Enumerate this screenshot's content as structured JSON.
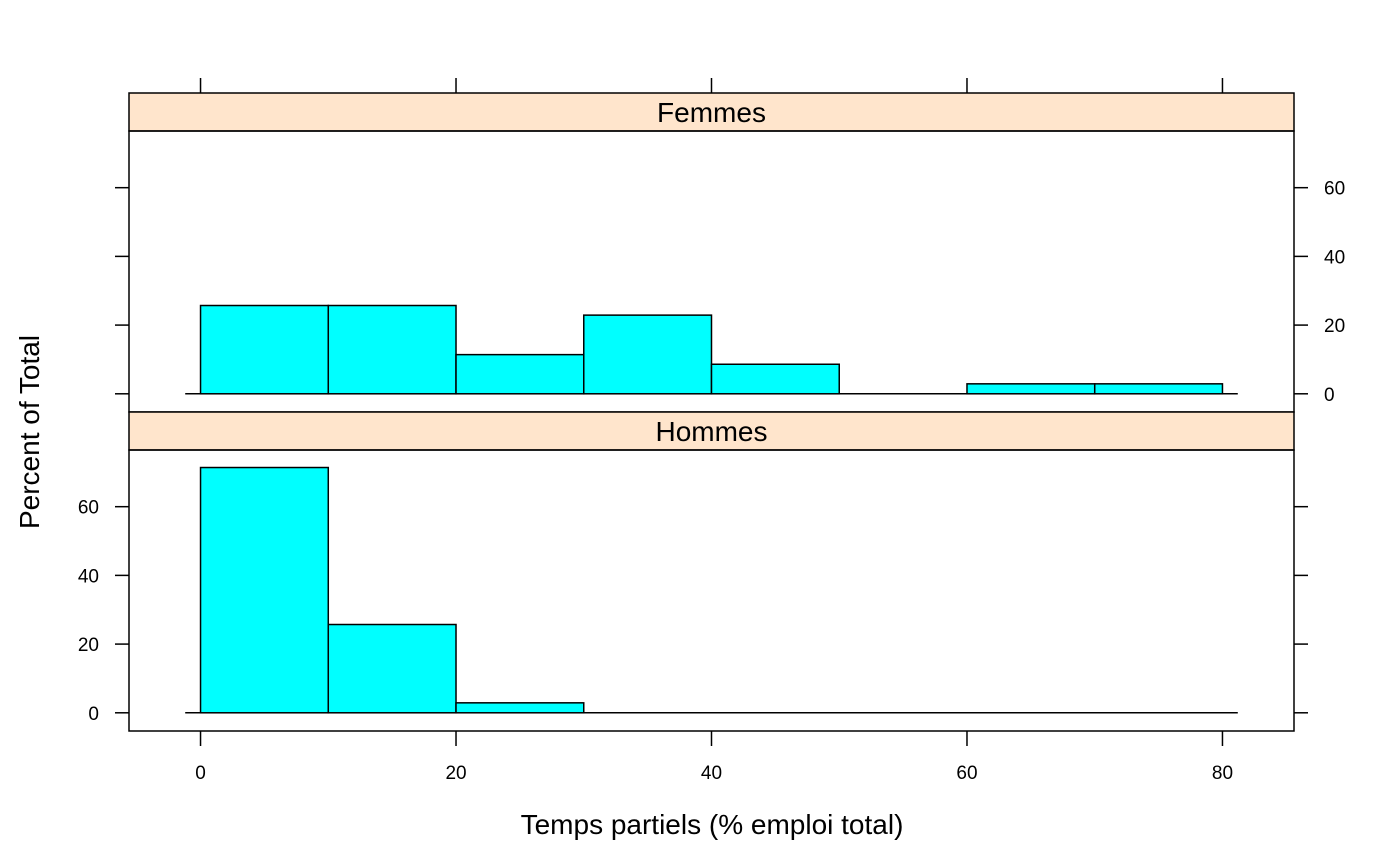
{
  "chart_data": {
    "type": "bar",
    "title": "",
    "xlabel": "Temps partiels (% emploi total)",
    "ylabel": "Percent of Total",
    "xlim": [
      -5.6,
      85.6
    ],
    "ylim": [
      -5.3,
      76.5
    ],
    "xticks": [
      0,
      20,
      40,
      60,
      80
    ],
    "yticks": [
      0,
      20,
      40,
      60
    ],
    "bin_edges": [
      0,
      10,
      20,
      30,
      40,
      50,
      60,
      70,
      80
    ],
    "bar_color": "#00FFFF",
    "strip_color": "#FFE5CC",
    "panels": [
      {
        "name": "Femmes",
        "values": [
          25.7,
          25.7,
          11.4,
          22.9,
          8.6,
          0,
          2.9,
          2.9
        ]
      },
      {
        "name": "Hommes",
        "values": [
          71.4,
          25.7,
          2.9,
          0,
          0,
          0,
          0,
          0
        ]
      }
    ]
  }
}
